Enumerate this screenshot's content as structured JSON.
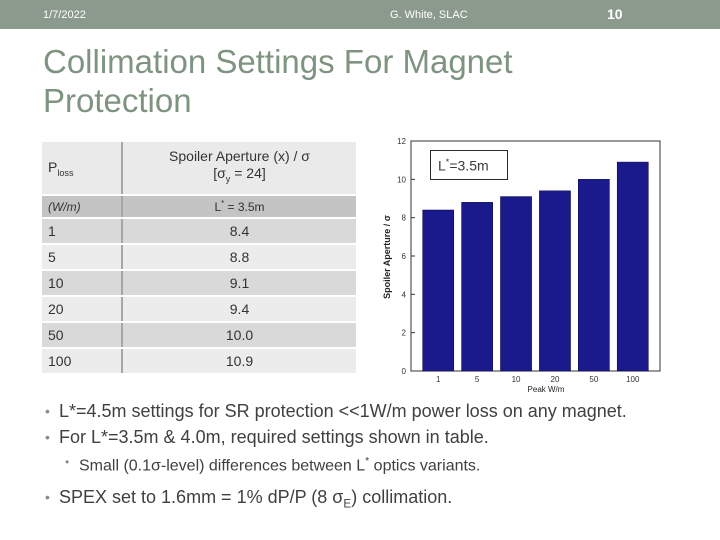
{
  "header": {
    "date": "1/7/2022",
    "author": "G. White, SLAC",
    "page_number": "10"
  },
  "title": "Collimation Settings For Magnet Protection",
  "table": {
    "header": {
      "col1": "P",
      "col1_sub": "loss",
      "col2_line1": "Spoiler Aperture (x) / σ",
      "col2_line2_pre": "[σ",
      "col2_line2_sub": "y",
      "col2_line2_post": " = 24]"
    },
    "unit_row": {
      "col1": "(W/m)",
      "col2_pre": "L",
      "col2_sup": "*",
      "col2_post": " = 3.5m"
    },
    "rows": [
      {
        "ploss": "1",
        "aperture": "8.4"
      },
      {
        "ploss": "5",
        "aperture": "8.8"
      },
      {
        "ploss": "10",
        "aperture": "9.1"
      },
      {
        "ploss": "20",
        "aperture": "9.4"
      },
      {
        "ploss": "50",
        "aperture": "10.0"
      },
      {
        "ploss": "100",
        "aperture": "10.9"
      }
    ]
  },
  "chart_data": {
    "type": "bar",
    "categories": [
      "1",
      "5",
      "10",
      "20",
      "50",
      "100"
    ],
    "values": [
      8.4,
      8.8,
      9.1,
      9.4,
      10.0,
      10.9
    ],
    "xlabel": "Peak W/m",
    "ylabel": "Spoiler Aperture / σ",
    "ylim": [
      0,
      12
    ],
    "yticks": [
      "0",
      "2",
      "4",
      "6",
      "8",
      "10",
      "12"
    ],
    "bar_color": "#1a1a8c",
    "annotation": {
      "pre": "L",
      "sup": "*",
      "post": "=3.5m"
    }
  },
  "bullets": {
    "b1": "L*=4.5m settings for SR protection <<1W/m power loss on any magnet.",
    "b2": "For L*=3.5m & 4.0m, required settings shown in table.",
    "b3_pre": "Small (0.1σ-level) differences between L",
    "b3_sup": "*",
    "b3_post": " optics variants.",
    "b4_pre": "SPEX set to 1.6mm = 1% d",
    "b4_mid": "P/P (8 σ",
    "b4_sub": "E",
    "b4_post": ") collimation."
  }
}
